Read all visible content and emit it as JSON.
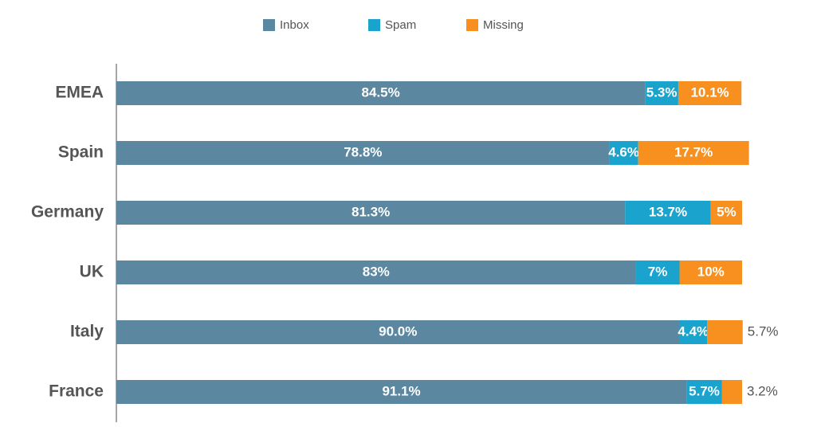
{
  "chart_data": {
    "type": "stacked_bar",
    "orientation": "horizontal",
    "categories": [
      "EMEA",
      "Spain",
      "Germany",
      "UK",
      "Italy",
      "France"
    ],
    "xlim": [
      0,
      100
    ],
    "legend": "top",
    "series": [
      {
        "name": "Inbox",
        "color": "#5b87a0",
        "values": [
          84.5,
          78.8,
          81.3,
          83,
          90.0,
          91.1
        ],
        "value_labels": [
          "84.5%",
          "78.8%",
          "81.3%",
          "83%",
          "90.0%",
          "91.1%"
        ]
      },
      {
        "name": "Spam",
        "color": "#1aa3cc",
        "values": [
          5.3,
          4.6,
          13.7,
          7,
          4.4,
          5.7
        ],
        "value_labels": [
          "5.3%",
          "4.6%",
          "13.7%",
          "7%",
          "4.4%",
          "5.7%"
        ]
      },
      {
        "name": "Missing",
        "color": "#f7901e",
        "values": [
          10.1,
          17.7,
          5,
          10,
          5.7,
          3.2
        ],
        "value_labels": [
          "10.1%",
          "17.7%",
          "5%",
          "10%",
          "5.7%",
          "3.2%"
        ]
      }
    ]
  }
}
